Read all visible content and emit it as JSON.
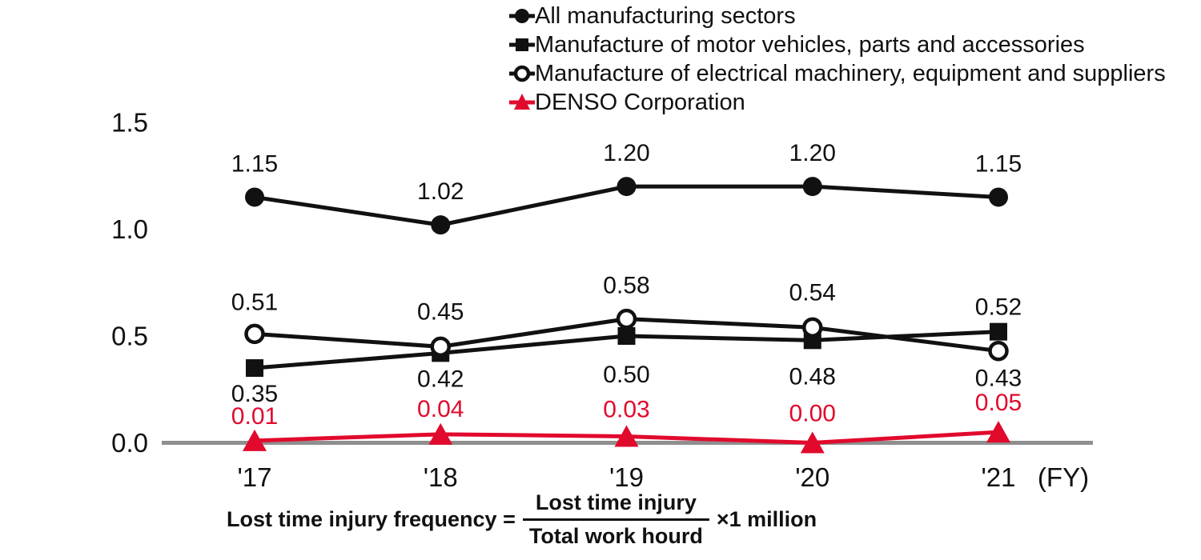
{
  "page": {
    "background": "#ffffff"
  },
  "chart_data": {
    "type": "line",
    "title": "",
    "x_categories": [
      "'17",
      "'18",
      "'19",
      "'20",
      "'21"
    ],
    "x_axis_suffix": "(FY)",
    "y_ticks": [
      {
        "label": "0.0",
        "value": 0.0
      },
      {
        "label": "0.5",
        "value": 0.5
      },
      {
        "label": "1.0",
        "value": 1.0
      },
      {
        "label": "1.5",
        "value": 1.5
      }
    ],
    "ylim": [
      0,
      1.5
    ],
    "grid": false,
    "legend_position": "top-center",
    "colors": {
      "series_black": "#111111",
      "series_red": "#e10a2d",
      "axis_line": "#8f8f8f"
    },
    "series": [
      {
        "name": "All manufacturing sectors",
        "marker": "circle",
        "color": "#111111",
        "values": [
          1.15,
          1.02,
          1.2,
          1.2,
          1.15
        ],
        "labels": [
          "1.15",
          "1.02",
          "1.20",
          "1.20",
          "1.15"
        ],
        "label_dy": [
          -32,
          -32,
          -32,
          -32,
          -32
        ]
      },
      {
        "name": "Manufacture of motor vehicles, parts and accessories",
        "marker": "square",
        "color": "#111111",
        "values": [
          0.35,
          0.42,
          0.5,
          0.48,
          0.52
        ],
        "labels": [
          "0.35",
          "0.42",
          "0.50",
          "0.48",
          "0.52"
        ],
        "label_dy": [
          42,
          42,
          58,
          55,
          -21
        ]
      },
      {
        "name": "Manufacture of electrical machinery, equipment and suppliers",
        "marker": "open-circle",
        "color": "#111111",
        "values": [
          0.51,
          0.45,
          0.58,
          0.54,
          0.43
        ],
        "labels": [
          "0.51",
          "0.45",
          "0.58",
          "0.54",
          "0.43"
        ],
        "label_dy": [
          -30,
          -34,
          -32,
          -34,
          44
        ]
      },
      {
        "name": "DENSO Corporation",
        "marker": "triangle",
        "color": "#e10a2d",
        "values": [
          0.01,
          0.04,
          0.03,
          0.0,
          0.05
        ],
        "labels": [
          "0.01",
          "0.04",
          "0.03",
          "0.00",
          "0.05"
        ],
        "label_dy": [
          -21,
          -22,
          -24,
          -27,
          -27
        ]
      }
    ]
  },
  "formula": {
    "lhs": "Lost time injury frequency =",
    "numerator": "Lost time injury",
    "denominator": "Total work hourd",
    "rhs": "×1 million"
  }
}
